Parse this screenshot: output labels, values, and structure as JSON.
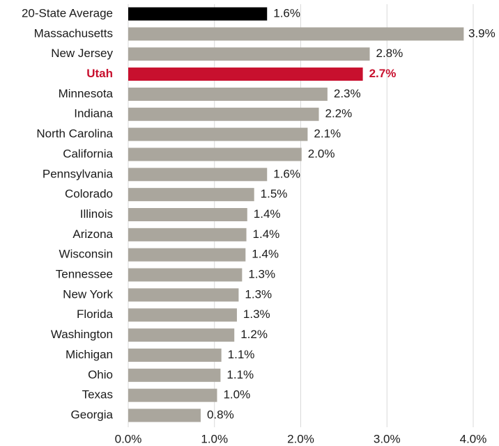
{
  "chart_data": {
    "type": "hbar",
    "categories": [
      "20-State Average",
      "Massachusetts",
      "New Jersey",
      "Utah",
      "Minnesota",
      "Indiana",
      "North Carolina",
      "California",
      "Pennsylvania",
      "Colorado",
      "Illinois",
      "Arizona",
      "Wisconsin",
      "Tennessee",
      "New York",
      "Florida",
      "Washington",
      "Michigan",
      "Ohio",
      "Texas",
      "Georgia"
    ],
    "values": [
      1.61,
      3.89,
      2.8,
      2.72,
      2.31,
      2.21,
      2.08,
      2.01,
      1.61,
      1.46,
      1.38,
      1.37,
      1.36,
      1.32,
      1.28,
      1.26,
      1.23,
      1.08,
      1.07,
      1.03,
      0.84
    ],
    "value_labels": [
      "1.6%",
      "3.9%",
      "2.8%",
      "2.7%",
      "2.3%",
      "2.2%",
      "2.1%",
      "2.0%",
      "1.6%",
      "1.5%",
      "1.4%",
      "1.4%",
      "1.4%",
      "1.3%",
      "1.3%",
      "1.3%",
      "1.2%",
      "1.1%",
      "1.1%",
      "1.0%",
      "0.8%"
    ],
    "colors": [
      "#000000",
      "#aaa69d",
      "#aaa69d",
      "#c8102e",
      "#aaa69d",
      "#aaa69d",
      "#aaa69d",
      "#aaa69d",
      "#aaa69d",
      "#aaa69d",
      "#aaa69d",
      "#aaa69d",
      "#aaa69d",
      "#aaa69d",
      "#aaa69d",
      "#aaa69d",
      "#aaa69d",
      "#aaa69d",
      "#aaa69d",
      "#aaa69d",
      "#aaa69d"
    ],
    "label_colors": [
      "#1a1a1a",
      "#1a1a1a",
      "#1a1a1a",
      "#c8102e",
      "#1a1a1a",
      "#1a1a1a",
      "#1a1a1a",
      "#1a1a1a",
      "#1a1a1a",
      "#1a1a1a",
      "#1a1a1a",
      "#1a1a1a",
      "#1a1a1a",
      "#1a1a1a",
      "#1a1a1a",
      "#1a1a1a",
      "#1a1a1a",
      "#1a1a1a",
      "#1a1a1a",
      "#1a1a1a",
      "#1a1a1a"
    ],
    "label_bold": [
      false,
      false,
      false,
      true,
      false,
      false,
      false,
      false,
      false,
      false,
      false,
      false,
      false,
      false,
      false,
      false,
      false,
      false,
      false,
      false,
      false
    ],
    "xlim": [
      0,
      4
    ],
    "xticks": [
      {
        "value": 0,
        "label": "0.0%"
      },
      {
        "value": 1,
        "label": "1.0%"
      },
      {
        "value": 2,
        "label": "2.0%"
      },
      {
        "value": 3,
        "label": "3.0%"
      },
      {
        "value": 4,
        "label": "4.0%"
      }
    ],
    "grid": true
  }
}
